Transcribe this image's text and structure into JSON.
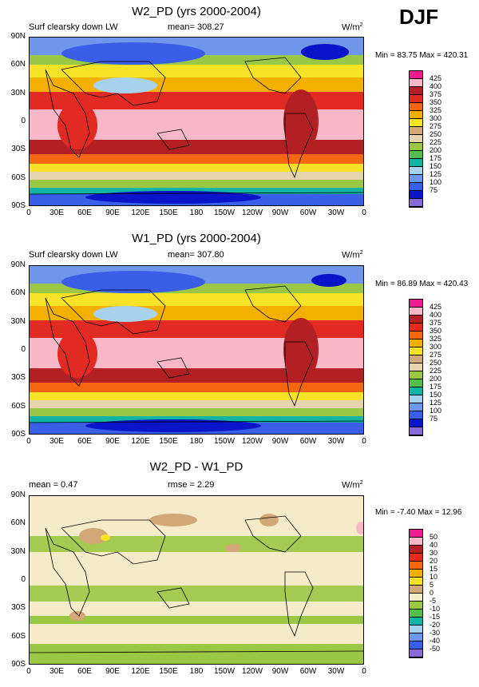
{
  "season": "DJF",
  "palette_main": [
    "#8a6ad6",
    "#0a14c8",
    "#3a5ee8",
    "#6e96ea",
    "#a6d2ee",
    "#12b4a4",
    "#56be50",
    "#9ac844",
    "#e6d4ae",
    "#d2a878",
    "#f6e226",
    "#f4b000",
    "#f46610",
    "#e02a22",
    "#b22024",
    "#f8b8c8",
    "#f01a90"
  ],
  "palette_diff": [
    "#8a6ad6",
    "#3a5ee8",
    "#6e96ea",
    "#a6d2ee",
    "#12b4a4",
    "#56be50",
    "#9ac844",
    "#f6ebc8",
    "#d2a878",
    "#f6e226",
    "#f4b000",
    "#f46610",
    "#e02a22",
    "#b22024",
    "#f8b8c8",
    "#f01a90"
  ],
  "lat_labels": [
    "90N",
    "60N",
    "30N",
    "0",
    "30S",
    "60S",
    "90S"
  ],
  "lon_labels": [
    "0",
    "30E",
    "60E",
    "90E",
    "120E",
    "150E",
    "180",
    "150W",
    "120W",
    "90W",
    "60W",
    "30W",
    "0"
  ],
  "panels": [
    {
      "title": "W2_PD (yrs 2000-2004)",
      "left_label": "Surf clearsky down LW",
      "center_label": "mean= 308.27",
      "units": "W/m",
      "units_exp": "2",
      "stats": "Min =  83.75 Max = 420.31",
      "colorbar_labels": [
        "425",
        "400",
        "375",
        "350",
        "325",
        "300",
        "275",
        "250",
        "225",
        "200",
        "175",
        "150",
        "125",
        "100",
        "75"
      ]
    },
    {
      "title": "W1_PD (yrs 2000-2004)",
      "left_label": "Surf clearsky down LW",
      "center_label": "mean= 307.80",
      "units": "W/m",
      "units_exp": "2",
      "stats": "Min =  86.89 Max = 420.43",
      "colorbar_labels": [
        "425",
        "400",
        "375",
        "350",
        "325",
        "300",
        "275",
        "250",
        "225",
        "200",
        "175",
        "150",
        "125",
        "100",
        "75"
      ]
    },
    {
      "title": "W2_PD - W1_PD",
      "left_label": "mean =   0.47",
      "center_label": "rmse =   2.29",
      "units": "W/m",
      "units_exp": "2",
      "stats": "Min =  -7.40 Max =  12.96",
      "colorbar_labels": [
        "50",
        "40",
        "30",
        "20",
        "15",
        "10",
        "5",
        "0",
        "-5",
        "-10",
        "-15",
        "-20",
        "-30",
        "-40",
        "-50"
      ]
    }
  ]
}
